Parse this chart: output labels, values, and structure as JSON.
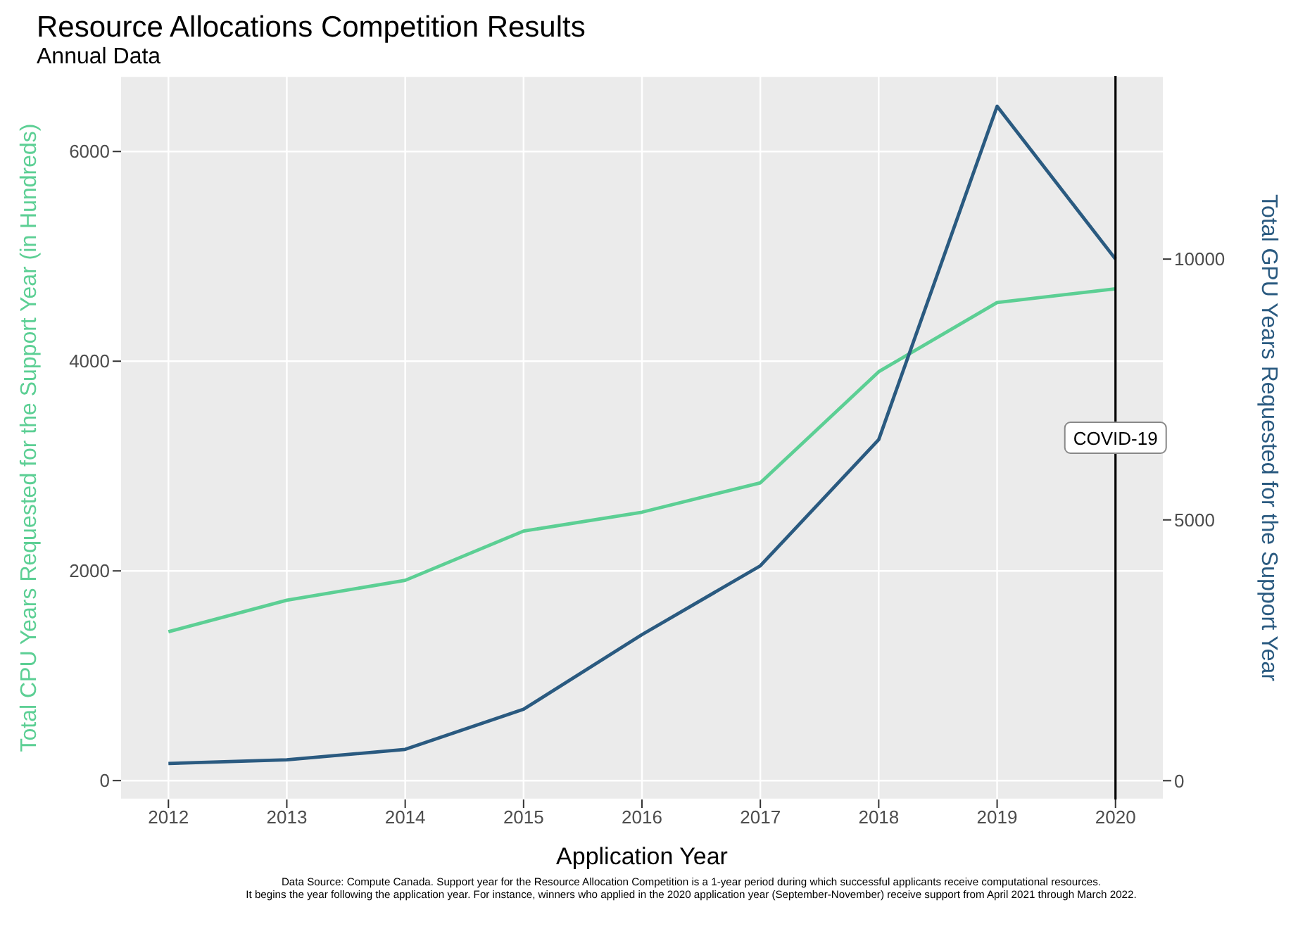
{
  "chart_data": {
    "type": "line",
    "title": "Resource Allocations Competition Results",
    "subtitle": "Annual Data",
    "xlabel": "Application Year",
    "ylabel": "Total CPU Years Requested for the Support Year (in Hundreds)",
    "y2label": "Total GPU Years Requested for the Support Year",
    "x": [
      2012,
      2013,
      2014,
      2015,
      2016,
      2017,
      2018,
      2019,
      2020
    ],
    "series": [
      {
        "color": "#5ccf94",
        "values": [
          1420,
          1720,
          1910,
          2380,
          2560,
          2840,
          3900,
          4560,
          4690
        ]
      },
      {
        "color": "#2a5a80",
        "axis": "y2",
        "values": [
          330,
          400,
          600,
          1370,
          2800,
          4120,
          6540,
          12930,
          10000
        ]
      }
    ],
    "xlim": [
      2011.6,
      2020.4
    ],
    "xticks": [
      2012,
      2013,
      2014,
      2015,
      2016,
      2017,
      2018,
      2019,
      2020
    ],
    "ylim": [
      -180,
      6720
    ],
    "yticks": [
      0,
      2000,
      4000,
      6000
    ],
    "y2lim": [
      -360,
      13510
    ],
    "y2ticks": [
      0,
      5000,
      10000
    ],
    "ref_lines": [
      {
        "axis": "x",
        "value": 2020,
        "label": "COVID-19",
        "color": "#000000"
      }
    ],
    "annotations": [
      "Data Source: Compute Canada. Support year for the Resource Allocation Competition is a 1-year period during which successful applicants receive computational resources.",
      "It begins the year following the application year. For instance, winners who applied in the 2020 application year (September-November) receive support from April 2021 through March 2022."
    ],
    "grid": true,
    "marker": "none",
    "line_style": "solid"
  }
}
